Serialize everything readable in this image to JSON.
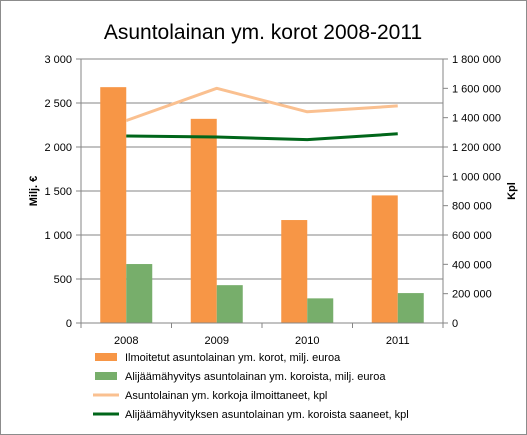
{
  "chart_data": {
    "type": "bar",
    "title": "Asuntolainan ym. korot 2008-2011",
    "categories": [
      "2008",
      "2009",
      "2010",
      "2011"
    ],
    "ylabel": "Milj. €",
    "y2label": "Kpl",
    "ylim": [
      0,
      3000
    ],
    "y2lim": [
      0,
      1800000
    ],
    "y_ticks": [
      0,
      500,
      1000,
      1500,
      2000,
      2500,
      3000
    ],
    "y_tick_labels": [
      "0",
      "500",
      "1 000",
      "1 500",
      "2 000",
      "2 500",
      "3 000"
    ],
    "y2_ticks": [
      0,
      200000,
      400000,
      600000,
      800000,
      1000000,
      1200000,
      1400000,
      1600000,
      1800000
    ],
    "y2_tick_labels": [
      "0",
      "200 000",
      "400 000",
      "600 000",
      "800 000",
      "1 000 000",
      "1 200 000",
      "1 400 000",
      "1 600 000",
      "1 800 000"
    ],
    "grid": true,
    "legend_position": "bottom",
    "series": [
      {
        "name": "Ilmoitetut asuntolainan ym. korot, milj. euroa",
        "type": "bar",
        "axis": "left",
        "color": "#F79646",
        "values": [
          2680,
          2320,
          1170,
          1450
        ]
      },
      {
        "name": "Alijäämähyvitys asuntolainan ym. koroista, milj. euroa",
        "type": "bar",
        "axis": "left",
        "color": "#77AE6B",
        "values": [
          670,
          430,
          280,
          340
        ]
      },
      {
        "name": "Asuntolainan ym. korkoja ilmoittaneet, kpl",
        "type": "line",
        "axis": "right",
        "color": "#FAC090",
        "values": [
          1380000,
          1600000,
          1440000,
          1480000
        ]
      },
      {
        "name": "Alijäämähyvityksen asuntolainan ym. koroista saaneet, kpl",
        "type": "line",
        "axis": "right",
        "color": "#00661A",
        "values": [
          1275000,
          1268000,
          1250000,
          1290000
        ]
      }
    ]
  }
}
